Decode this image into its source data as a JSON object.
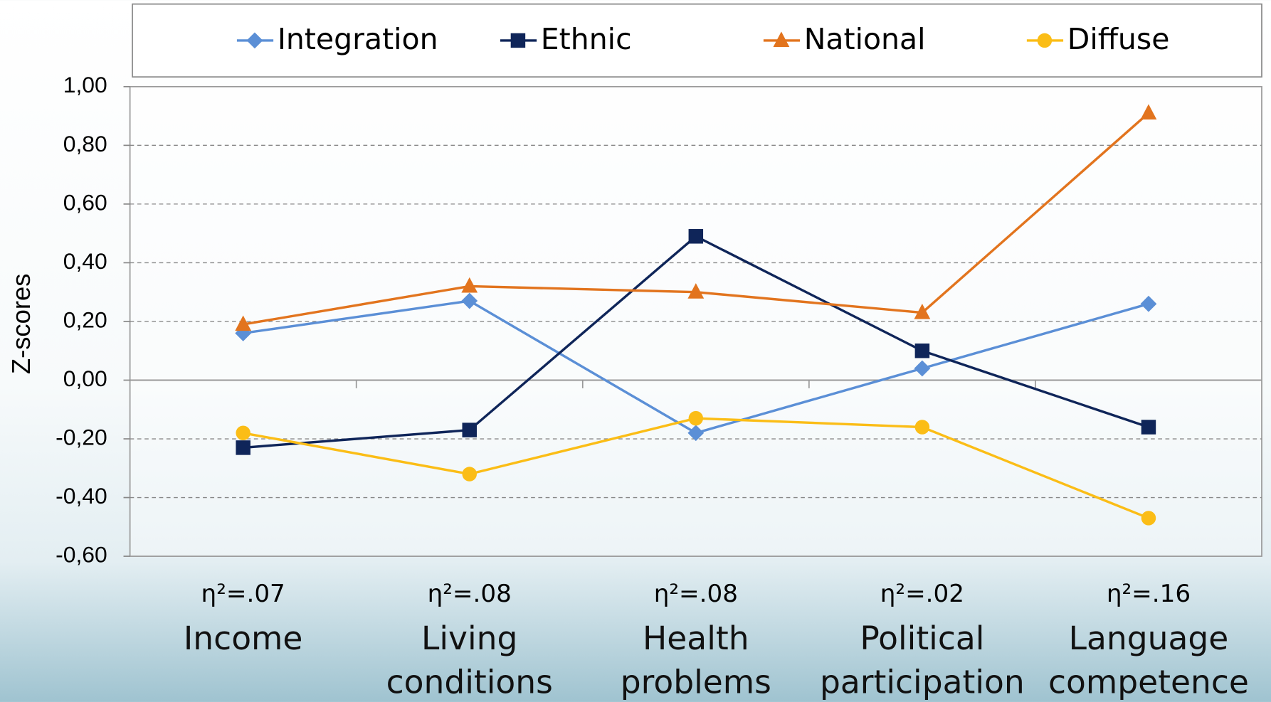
{
  "chart_data": {
    "type": "line",
    "y_label": "Z-scores",
    "categories": [
      "Income",
      "Living conditions",
      "Health problems",
      "Political participation",
      "Language competence"
    ],
    "annotations": [
      "η²=.07",
      "η²=.08",
      "η²=.08",
      "η²=.02",
      "η²=.16"
    ],
    "series": [
      {
        "name": "Integration",
        "color": "#5b8fd6",
        "marker": "diamond",
        "values": [
          0.16,
          0.27,
          -0.18,
          0.04,
          0.26
        ]
      },
      {
        "name": "Ethnic",
        "color": "#0f2559",
        "marker": "square",
        "values": [
          -0.23,
          -0.17,
          0.49,
          0.1,
          -0.16
        ]
      },
      {
        "name": "National",
        "color": "#e2741e",
        "marker": "triangle",
        "values": [
          0.19,
          0.32,
          0.3,
          0.23,
          0.91
        ]
      },
      {
        "name": "Diffuse",
        "color": "#fbbd16",
        "marker": "circle",
        "values": [
          -0.18,
          -0.32,
          -0.13,
          -0.16,
          -0.47
        ]
      }
    ],
    "ylim": [
      -0.6,
      1.0
    ],
    "yticks": [
      {
        "value": -0.6,
        "label": "-0,60"
      },
      {
        "value": -0.4,
        "label": "-0,40"
      },
      {
        "value": -0.2,
        "label": "-0,20"
      },
      {
        "value": 0,
        "label": "0,00"
      },
      {
        "value": 0.2,
        "label": "0,20"
      },
      {
        "value": 0.4,
        "label": "0,40"
      },
      {
        "value": 0.6,
        "label": "0,60"
      },
      {
        "value": 0.8,
        "label": "0,80"
      },
      {
        "value": 1.0,
        "label": "1,00"
      }
    ],
    "grid": true,
    "legend": "top"
  }
}
